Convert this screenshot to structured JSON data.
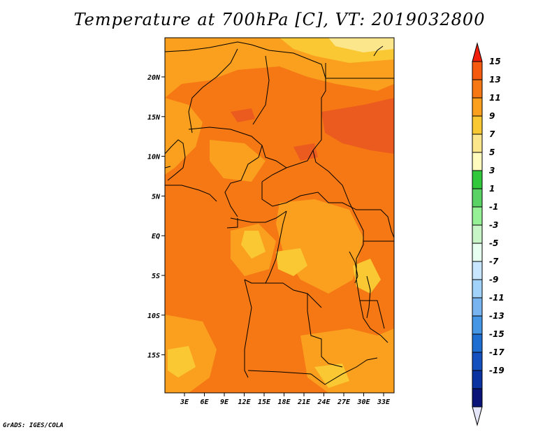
{
  "title": "Temperature at 700hPa [C], VT: 2019032800",
  "credit": "GrADS: IGES/COLA",
  "map": {
    "lon_ticks": [
      "3E",
      "6E",
      "9E",
      "12E",
      "15E",
      "18E",
      "21E",
      "24E",
      "27E",
      "30E",
      "33E"
    ],
    "lat_ticks": [
      "20N",
      "15N",
      "10N",
      "5N",
      "EQ",
      "5S",
      "10S",
      "15S"
    ],
    "fill_colors": {
      "low": "#fac832",
      "mid": "#faa01e",
      "high": "#f57814",
      "hot": "#eb5a1e",
      "pale": "#fce68c",
      "border": "#000000"
    }
  },
  "colorbar": {
    "labels": [
      "15",
      "13",
      "11",
      "9",
      "7",
      "5",
      "3",
      "1",
      "-1",
      "-3",
      "-5",
      "-7",
      "-9",
      "-11",
      "-13",
      "-15",
      "-17",
      "-19"
    ],
    "colors": [
      "#f01e0a",
      "#f55a0f",
      "#f57814",
      "#faa01e",
      "#fac832",
      "#fce68c",
      "#fffabe",
      "#32c83c",
      "#5ad264",
      "#96f096",
      "#c8f5c8",
      "#e6fff0",
      "#c8e6ff",
      "#a0d2fa",
      "#78b4f0",
      "#4696e6",
      "#1e6ed2",
      "#1450be",
      "#0a32a0",
      "#0a1478",
      "#e6e6fa"
    ]
  }
}
